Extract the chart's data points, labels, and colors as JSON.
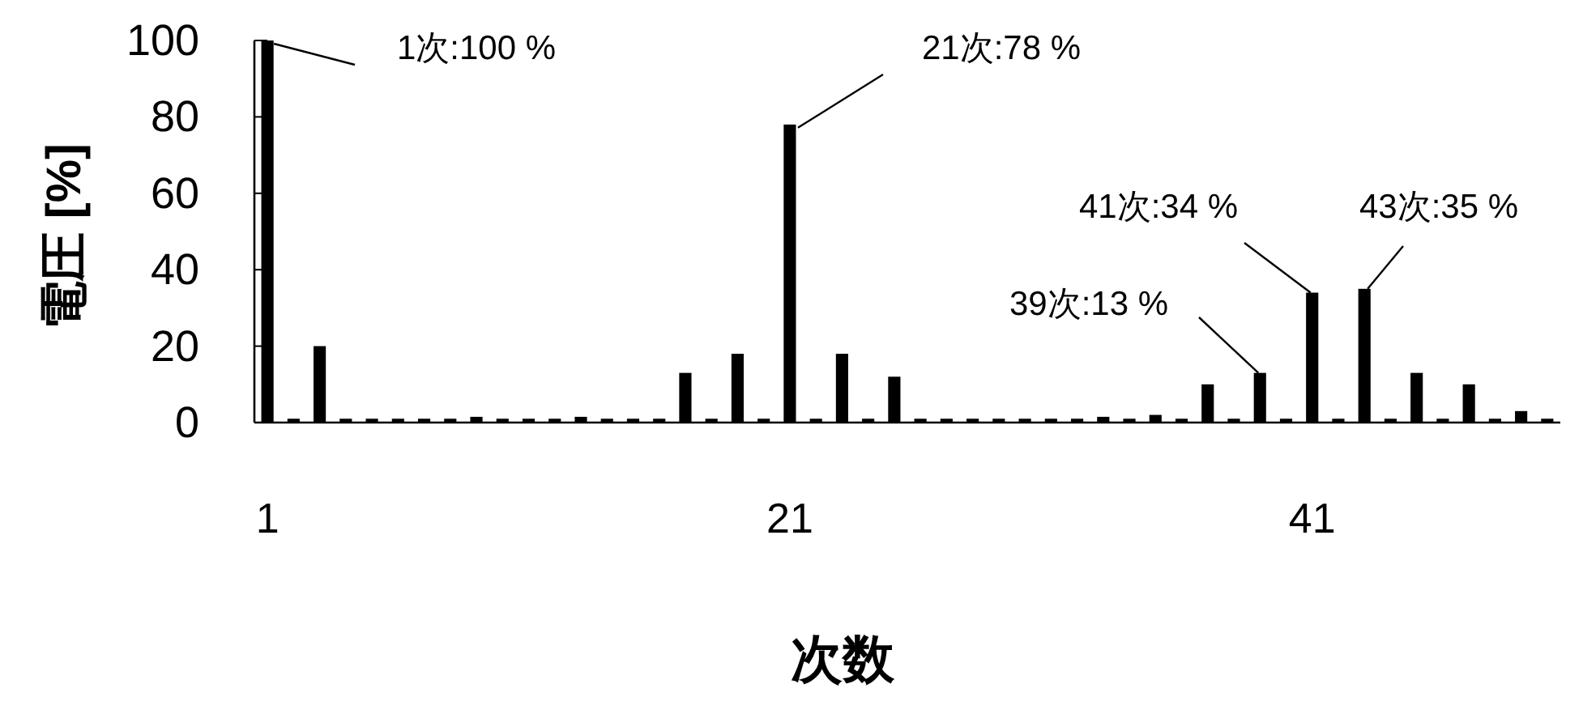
{
  "chart_data": {
    "type": "bar",
    "xlabel": "次数",
    "ylabel": "電圧 [%]",
    "x": [
      1,
      2,
      3,
      4,
      5,
      6,
      7,
      8,
      9,
      10,
      11,
      12,
      13,
      14,
      15,
      16,
      17,
      18,
      19,
      20,
      21,
      22,
      23,
      24,
      25,
      26,
      27,
      28,
      29,
      30,
      31,
      32,
      33,
      34,
      35,
      36,
      37,
      38,
      39,
      40,
      41,
      42,
      43,
      44,
      45,
      46,
      47,
      48,
      49,
      50
    ],
    "values": [
      100,
      1,
      20,
      1,
      1,
      1,
      1,
      1,
      1.5,
      1,
      1,
      1,
      1.5,
      1,
      1,
      1,
      13,
      1,
      18,
      1,
      78,
      1,
      18,
      1,
      12,
      1,
      1,
      1,
      1,
      1,
      1,
      1,
      1.5,
      1,
      2,
      1,
      10,
      1,
      13,
      1,
      34,
      1,
      35,
      1,
      13,
      1,
      10,
      1,
      3,
      1
    ],
    "color": "#000000",
    "xlim": [
      0.5,
      50.5
    ],
    "xticks": [
      1,
      21,
      41
    ],
    "ylim": [
      0,
      100
    ],
    "yticks": [
      0,
      20,
      40,
      60,
      80,
      100
    ],
    "annotations": [
      {
        "text": "1次:100 %",
        "x": 1,
        "y": 100
      },
      {
        "text": "21次:78 %",
        "x": 21,
        "y": 78
      },
      {
        "text": "39次:13 %",
        "x": 39,
        "y": 13
      },
      {
        "text": "41次:34 %",
        "x": 41,
        "y": 34
      },
      {
        "text": "43次:35 %",
        "x": 43,
        "y": 35
      }
    ]
  }
}
